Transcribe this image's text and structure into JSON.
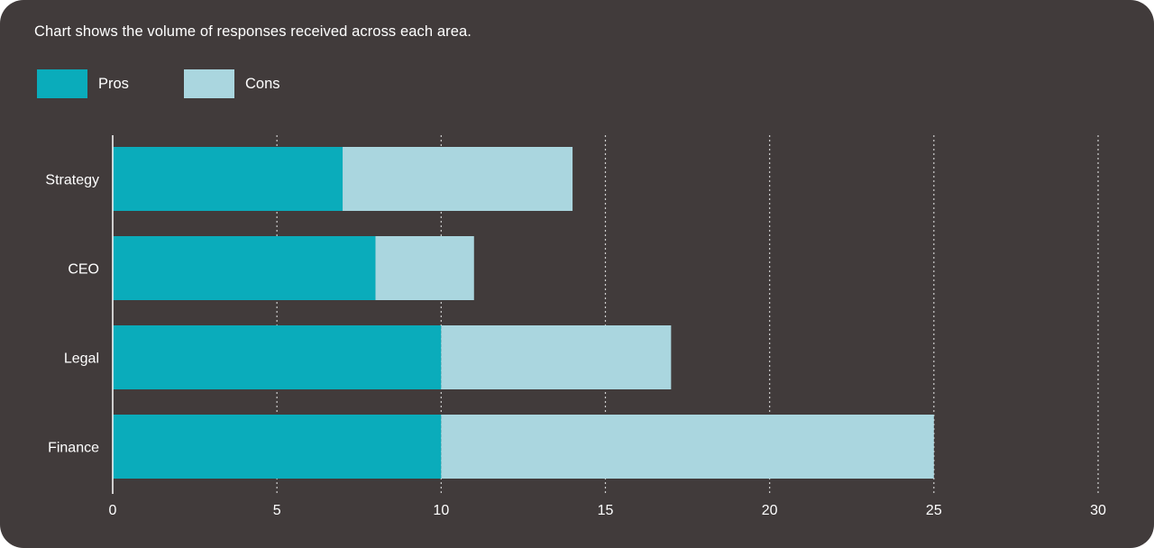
{
  "subtitle": "Chart shows the volume of responses received across each area.",
  "colors": {
    "background": "#413b3b",
    "pros": "#0aacbb",
    "cons": "#aad6df",
    "text": "#ffffff",
    "grid": "#cfcfcf"
  },
  "chart_data": {
    "type": "bar",
    "orientation": "horizontal",
    "stacked": true,
    "categories": [
      "Strategy",
      "CEO",
      "Legal",
      "Finance"
    ],
    "series": [
      {
        "name": "Pros",
        "values": [
          7,
          8,
          10,
          10
        ]
      },
      {
        "name": "Cons",
        "values": [
          7,
          3,
          7,
          15
        ]
      }
    ],
    "xlim": [
      0,
      30
    ],
    "xticks": [
      0,
      5,
      10,
      15,
      20,
      25,
      30
    ],
    "grid": "vertical dotted",
    "legend": "top-left",
    "title": "",
    "xlabel": "",
    "ylabel": ""
  }
}
